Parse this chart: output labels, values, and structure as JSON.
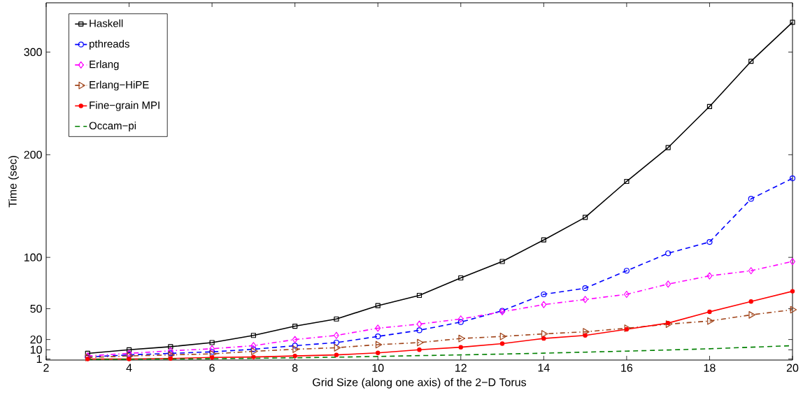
{
  "chart_data": {
    "type": "line",
    "xlabel": "Grid Size (along one axis) of the 2−D Torus",
    "ylabel": "Time (sec)",
    "x": [
      3,
      4,
      5,
      6,
      7,
      8,
      9,
      10,
      11,
      12,
      13,
      14,
      15,
      16,
      17,
      18,
      19,
      20
    ],
    "xlim": [
      2,
      20
    ],
    "ylim": [
      0,
      348
    ],
    "xticks": [
      2,
      4,
      6,
      8,
      10,
      12,
      14,
      16,
      18,
      20
    ],
    "yticks": [
      1,
      10,
      20,
      50,
      100,
      200,
      300
    ],
    "grid": false,
    "legend": "top left",
    "series": [
      {
        "name": "Haskell",
        "color": "#000000",
        "marker": "square",
        "line_style": "solid",
        "values": [
          6.5,
          10,
          13,
          17,
          24,
          33,
          40,
          53,
          63,
          80,
          96,
          117,
          139,
          174,
          207,
          247,
          291,
          329
        ]
      },
      {
        "name": "pthreads",
        "color": "#0000ff",
        "marker": "circle",
        "line_style": "dashed",
        "values": [
          3,
          5,
          6.5,
          8,
          10.5,
          14,
          17,
          23,
          29,
          37,
          48,
          64,
          70,
          87,
          104,
          115,
          157,
          177
        ]
      },
      {
        "name": "Erlang",
        "color": "#ff00ff",
        "marker": "diamond",
        "line_style": "dashdotted",
        "values": [
          4,
          6.5,
          9,
          11,
          14,
          20,
          24,
          31,
          35,
          40,
          47,
          54,
          59,
          64,
          74,
          82,
          87,
          96
        ]
      },
      {
        "name": "Erlang−HiPE",
        "color": "#a0441a",
        "marker": "triangle",
        "line_style": "dashdotted",
        "values": [
          2.5,
          4,
          5,
          6,
          8.5,
          10.5,
          12,
          15,
          17,
          21,
          23,
          25.5,
          27.5,
          31,
          35,
          38,
          44,
          49
        ]
      },
      {
        "name": "Fine−grain MPI",
        "color": "#ff0000",
        "marker": "dot",
        "line_style": "solid",
        "values": [
          1,
          1,
          1.5,
          2.5,
          3,
          4,
          5,
          7,
          10,
          12.5,
          16,
          21,
          24,
          30,
          36,
          47,
          57,
          67
        ]
      },
      {
        "name": "Occam−pi",
        "color": "#008000",
        "marker": "none",
        "line_style": "dashed",
        "values": [
          0.5,
          0.8,
          1,
          1.3,
          1.7,
          2.2,
          2.8,
          3.5,
          4.3,
          5,
          5.8,
          6.7,
          7.7,
          8.7,
          9.8,
          11,
          12.5,
          14
        ]
      }
    ]
  }
}
